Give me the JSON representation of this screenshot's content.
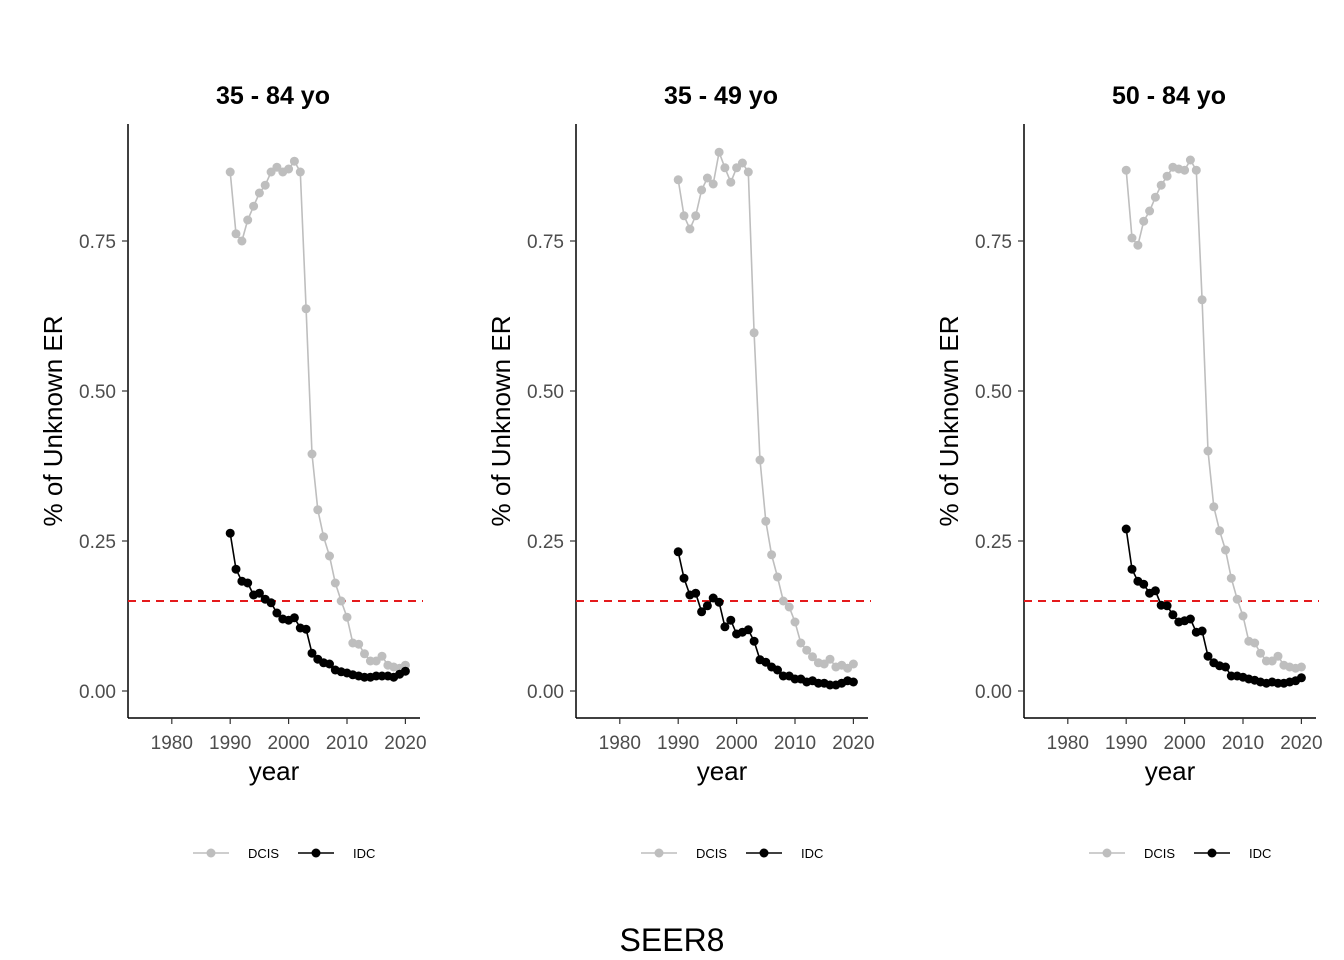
{
  "caption": "SEER8",
  "chart_data": [
    {
      "type": "line",
      "title": "35 - 84 yo",
      "xlabel": "year",
      "ylabel": "% of Unknown ER",
      "xlim": [
        1972.5,
        2022.5
      ],
      "ylim": [
        -0.045,
        0.945
      ],
      "x_ticks": [
        1980,
        1990,
        2000,
        2010,
        2020
      ],
      "x_tick_labels": [
        "1980",
        "1990",
        "2000",
        "2010",
        "2020"
      ],
      "y_ticks": [
        0.0,
        0.25,
        0.5,
        0.75
      ],
      "y_tick_labels": [
        "0.00",
        "0.25",
        "0.50",
        "0.75"
      ],
      "hline": {
        "y": 0.15,
        "color": "#e41a1c",
        "style": "dashed"
      },
      "legend_position": "bottom",
      "x": [
        1990,
        1991,
        1992,
        1993,
        1994,
        1995,
        1996,
        1997,
        1998,
        1999,
        2000,
        2001,
        2002,
        2003,
        2004,
        2005,
        2006,
        2007,
        2008,
        2009,
        2010,
        2011,
        2012,
        2013,
        2014,
        2015,
        2016,
        2017,
        2018,
        2019,
        2020
      ],
      "series": [
        {
          "name": "DCIS",
          "color": "#bebebe",
          "values": [
            0.865,
            0.762,
            0.75,
            0.785,
            0.808,
            0.83,
            0.843,
            0.865,
            0.873,
            0.865,
            0.87,
            0.883,
            0.865,
            0.637,
            0.395,
            0.302,
            0.257,
            0.225,
            0.18,
            0.15,
            0.123,
            0.08,
            0.078,
            0.062,
            0.05,
            0.05,
            0.058,
            0.043,
            0.04,
            0.038,
            0.043
          ]
        },
        {
          "name": "IDC",
          "color": "#000000",
          "values": [
            0.263,
            0.203,
            0.183,
            0.18,
            0.16,
            0.163,
            0.153,
            0.147,
            0.13,
            0.12,
            0.118,
            0.122,
            0.105,
            0.103,
            0.063,
            0.053,
            0.047,
            0.045,
            0.035,
            0.032,
            0.03,
            0.027,
            0.025,
            0.023,
            0.023,
            0.025,
            0.025,
            0.025,
            0.023,
            0.028,
            0.033
          ]
        }
      ]
    },
    {
      "type": "line",
      "title": "35 - 49 yo",
      "xlabel": "year",
      "ylabel": "% of Unknown ER",
      "xlim": [
        1972.5,
        2022.5
      ],
      "ylim": [
        -0.045,
        0.945
      ],
      "x_ticks": [
        1980,
        1990,
        2000,
        2010,
        2020
      ],
      "x_tick_labels": [
        "1980",
        "1990",
        "2000",
        "2010",
        "2020"
      ],
      "y_ticks": [
        0.0,
        0.25,
        0.5,
        0.75
      ],
      "y_tick_labels": [
        "0.00",
        "0.25",
        "0.50",
        "0.75"
      ],
      "hline": {
        "y": 0.15,
        "color": "#e41a1c",
        "style": "dashed"
      },
      "legend_position": "bottom",
      "x": [
        1990,
        1991,
        1992,
        1993,
        1994,
        1995,
        1996,
        1997,
        1998,
        1999,
        2000,
        2001,
        2002,
        2003,
        2004,
        2005,
        2006,
        2007,
        2008,
        2009,
        2010,
        2011,
        2012,
        2013,
        2014,
        2015,
        2016,
        2017,
        2018,
        2019,
        2020
      ],
      "series": [
        {
          "name": "DCIS",
          "color": "#bebebe",
          "values": [
            0.852,
            0.792,
            0.77,
            0.792,
            0.835,
            0.855,
            0.845,
            0.898,
            0.872,
            0.848,
            0.872,
            0.88,
            0.865,
            0.597,
            0.385,
            0.283,
            0.227,
            0.19,
            0.15,
            0.14,
            0.115,
            0.08,
            0.068,
            0.057,
            0.047,
            0.045,
            0.053,
            0.04,
            0.043,
            0.038,
            0.045
          ]
        },
        {
          "name": "IDC",
          "color": "#000000",
          "values": [
            0.232,
            0.188,
            0.16,
            0.163,
            0.132,
            0.142,
            0.155,
            0.148,
            0.107,
            0.118,
            0.095,
            0.098,
            0.102,
            0.083,
            0.052,
            0.048,
            0.04,
            0.035,
            0.025,
            0.025,
            0.02,
            0.02,
            0.015,
            0.017,
            0.013,
            0.013,
            0.01,
            0.01,
            0.013,
            0.017,
            0.015
          ]
        }
      ]
    },
    {
      "type": "line",
      "title": "50 - 84 yo",
      "xlabel": "year",
      "ylabel": "% of Unknown ER",
      "xlim": [
        1972.5,
        2022.5
      ],
      "ylim": [
        -0.045,
        0.945
      ],
      "x_ticks": [
        1980,
        1990,
        2000,
        2010,
        2020
      ],
      "x_tick_labels": [
        "1980",
        "1990",
        "2000",
        "2010",
        "2020"
      ],
      "y_ticks": [
        0.0,
        0.25,
        0.5,
        0.75
      ],
      "y_tick_labels": [
        "0.00",
        "0.25",
        "0.50",
        "0.75"
      ],
      "hline": {
        "y": 0.15,
        "color": "#e41a1c",
        "style": "dashed"
      },
      "legend_position": "bottom",
      "x": [
        1990,
        1991,
        1992,
        1993,
        1994,
        1995,
        1996,
        1997,
        1998,
        1999,
        2000,
        2001,
        2002,
        2003,
        2004,
        2005,
        2006,
        2007,
        2008,
        2009,
        2010,
        2011,
        2012,
        2013,
        2014,
        2015,
        2016,
        2017,
        2018,
        2019,
        2020
      ],
      "series": [
        {
          "name": "DCIS",
          "color": "#bebebe",
          "values": [
            0.868,
            0.755,
            0.743,
            0.783,
            0.8,
            0.823,
            0.843,
            0.858,
            0.873,
            0.87,
            0.868,
            0.885,
            0.868,
            0.652,
            0.4,
            0.307,
            0.267,
            0.235,
            0.188,
            0.153,
            0.125,
            0.083,
            0.08,
            0.063,
            0.05,
            0.05,
            0.058,
            0.043,
            0.04,
            0.038,
            0.04
          ]
        },
        {
          "name": "IDC",
          "color": "#000000",
          "values": [
            0.27,
            0.203,
            0.183,
            0.178,
            0.163,
            0.167,
            0.143,
            0.142,
            0.127,
            0.115,
            0.117,
            0.12,
            0.098,
            0.1,
            0.058,
            0.047,
            0.042,
            0.04,
            0.025,
            0.025,
            0.023,
            0.02,
            0.018,
            0.015,
            0.013,
            0.015,
            0.013,
            0.013,
            0.015,
            0.017,
            0.022
          ]
        }
      ]
    }
  ]
}
